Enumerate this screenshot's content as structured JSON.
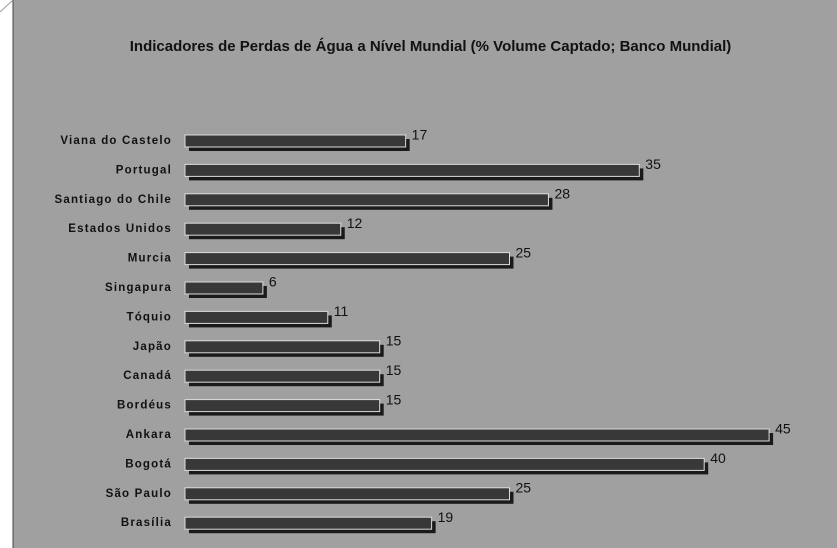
{
  "chart_data": {
    "type": "bar",
    "orientation": "horizontal",
    "title": "Indicadores de Perdas de Água a Nível Mundial (% Volume Captado; Banco Mundial)",
    "categories": [
      "Viana do Castelo",
      "Portugal",
      "Santiago do Chile",
      "Estados Unidos",
      "Murcia",
      "Singapura",
      "Tóquio",
      "Japão",
      "Canadá",
      "Bordéus",
      "Ankara",
      "Bogotá",
      "São Paulo",
      "Brasília"
    ],
    "values": [
      17,
      35,
      28,
      12,
      25,
      6,
      11,
      15,
      15,
      15,
      45,
      40,
      25,
      19
    ],
    "color": "#383838"
  }
}
